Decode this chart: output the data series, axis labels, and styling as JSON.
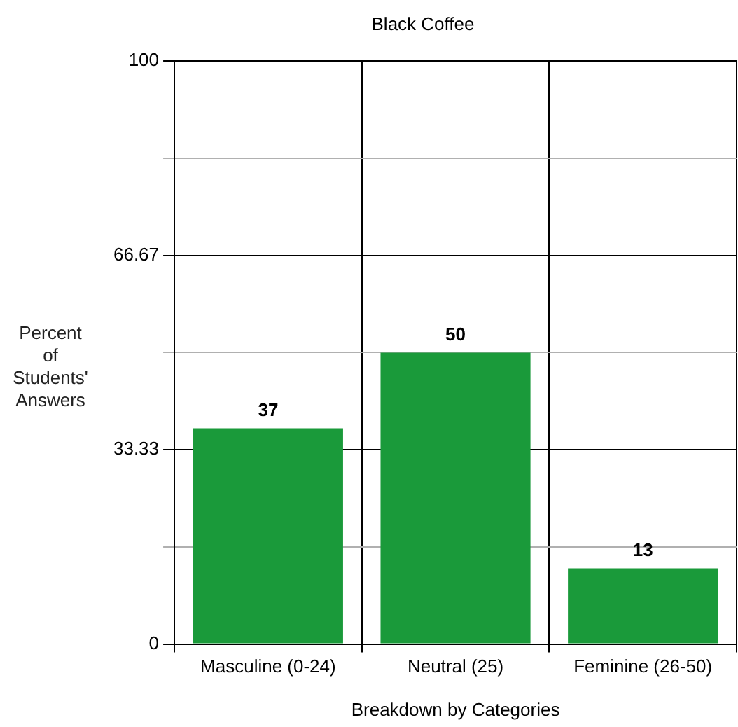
{
  "chart_data": {
    "type": "bar",
    "title": "Black Coffee",
    "xlabel": "Breakdown by Categories",
    "ylabel": "Percent of Students' Answers",
    "categories": [
      "Masculine (0-24)",
      "Neutral (25)",
      "Feminine (26-50)"
    ],
    "values": [
      37,
      50,
      13
    ],
    "color": "#1a9a3a",
    "ylim": [
      0,
      100
    ],
    "yticks": [
      0,
      {
        "value": 16.67,
        "label": null
      },
      33.33,
      {
        "value": 50,
        "label": null
      },
      66.67,
      {
        "value": 83.33,
        "label": null
      },
      100
    ],
    "grid": true,
    "data_labels": true,
    "legend": false
  }
}
